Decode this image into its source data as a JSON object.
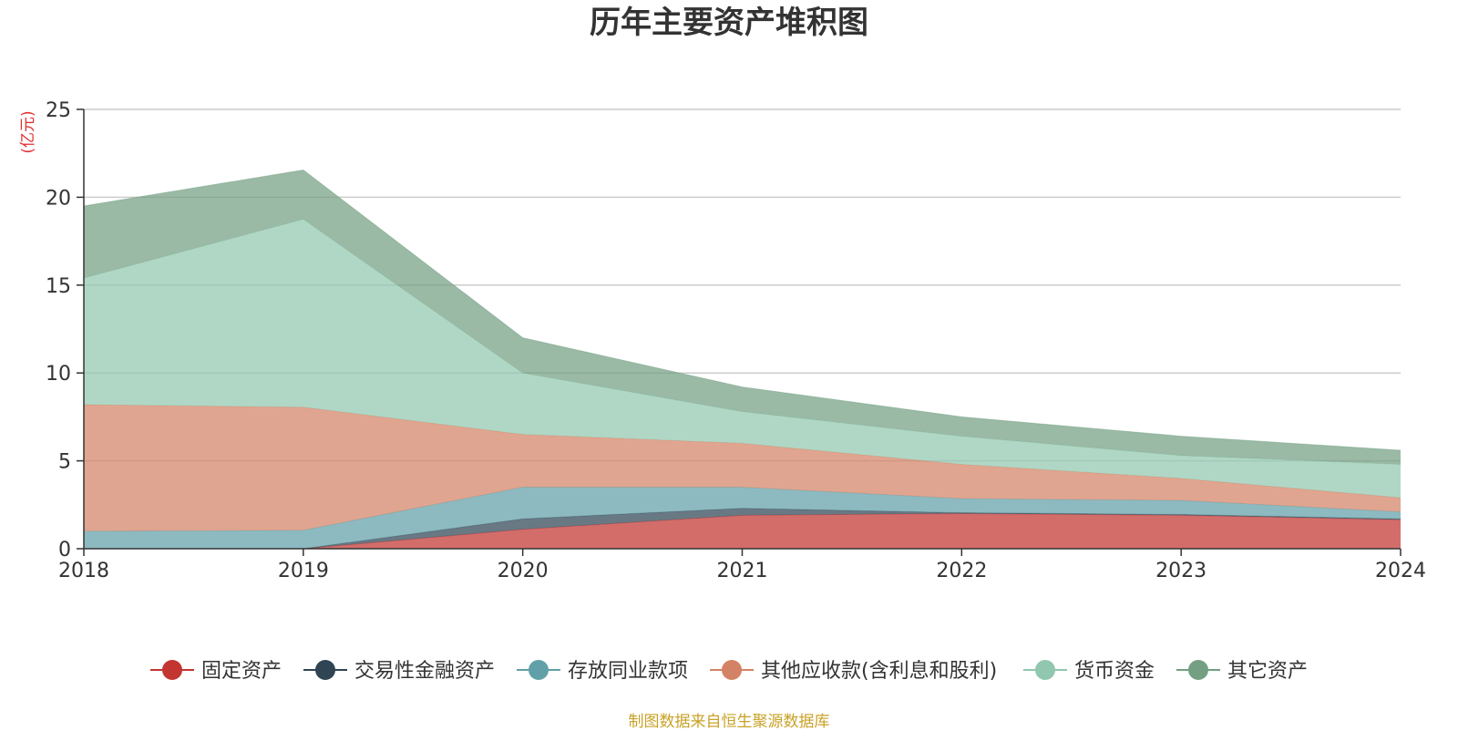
{
  "chart_data": {
    "type": "area",
    "stacked": true,
    "title": "历年主要资产堆积图",
    "unit_label": "(亿元)",
    "x": [
      "2018",
      "2019",
      "2020",
      "2021",
      "2022",
      "2023",
      "2024"
    ],
    "y_ticks": [
      "0",
      "5",
      "10",
      "15",
      "20",
      "25"
    ],
    "ylim": [
      0,
      25
    ],
    "grid": true,
    "legend_position": "bottom",
    "series": [
      {
        "name": "固定资产",
        "color": "#c23531",
        "values": [
          0,
          0,
          1.1,
          1.9,
          2.0,
          1.9,
          1.65
        ]
      },
      {
        "name": "交易性金融资产",
        "color": "#2f4554",
        "values": [
          0,
          0,
          0.6,
          0.4,
          0.05,
          0.05,
          0.05
        ]
      },
      {
        "name": "存放同业款项",
        "color": "#61a0a8",
        "values": [
          1.0,
          1.05,
          1.8,
          1.2,
          0.8,
          0.8,
          0.4
        ]
      },
      {
        "name": "其他应收款(含利息和股利)",
        "color": "#d48265",
        "values": [
          7.2,
          7.0,
          3.0,
          2.5,
          1.95,
          1.25,
          0.8
        ]
      },
      {
        "name": "货币资金",
        "color": "#91c7ae",
        "values": [
          7.2,
          10.7,
          3.5,
          1.8,
          1.6,
          1.3,
          1.9
        ]
      },
      {
        "name": "其它资产",
        "color": "#749f83",
        "values": [
          4.1,
          2.8,
          2.0,
          1.4,
          1.1,
          1.1,
          0.8
        ]
      }
    ]
  },
  "source_note": "制图数据来自恒生聚源数据库"
}
